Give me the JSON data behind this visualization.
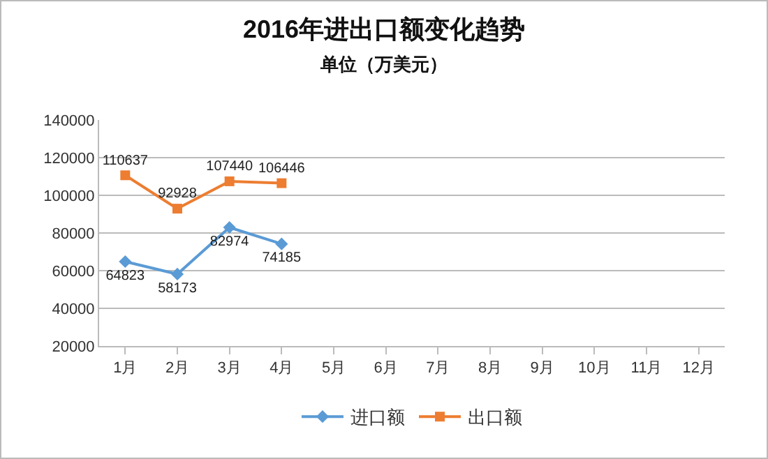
{
  "chart_data": {
    "type": "line",
    "title": "2016年进出口额变化趋势",
    "subtitle": "单位（万美元）",
    "categories": [
      "1月",
      "2月",
      "3月",
      "4月",
      "5月",
      "6月",
      "7月",
      "8月",
      "9月",
      "10月",
      "11月",
      "12月"
    ],
    "series": [
      {
        "name": "进口额",
        "color": "#5b9bd5",
        "marker": "diamond",
        "values": [
          64823,
          58173,
          82974,
          74185,
          null,
          null,
          null,
          null,
          null,
          null,
          null,
          null
        ]
      },
      {
        "name": "出口额",
        "color": "#ed7d31",
        "marker": "square",
        "values": [
          110637,
          92928,
          107440,
          106446,
          null,
          null,
          null,
          null,
          null,
          null,
          null,
          null
        ]
      }
    ],
    "ylim": [
      20000,
      140000
    ],
    "yticks": [
      20000,
      40000,
      60000,
      80000,
      100000,
      120000,
      140000
    ],
    "grid": "y",
    "legend": "bottom",
    "data_labels": true,
    "line_style": "solid"
  }
}
